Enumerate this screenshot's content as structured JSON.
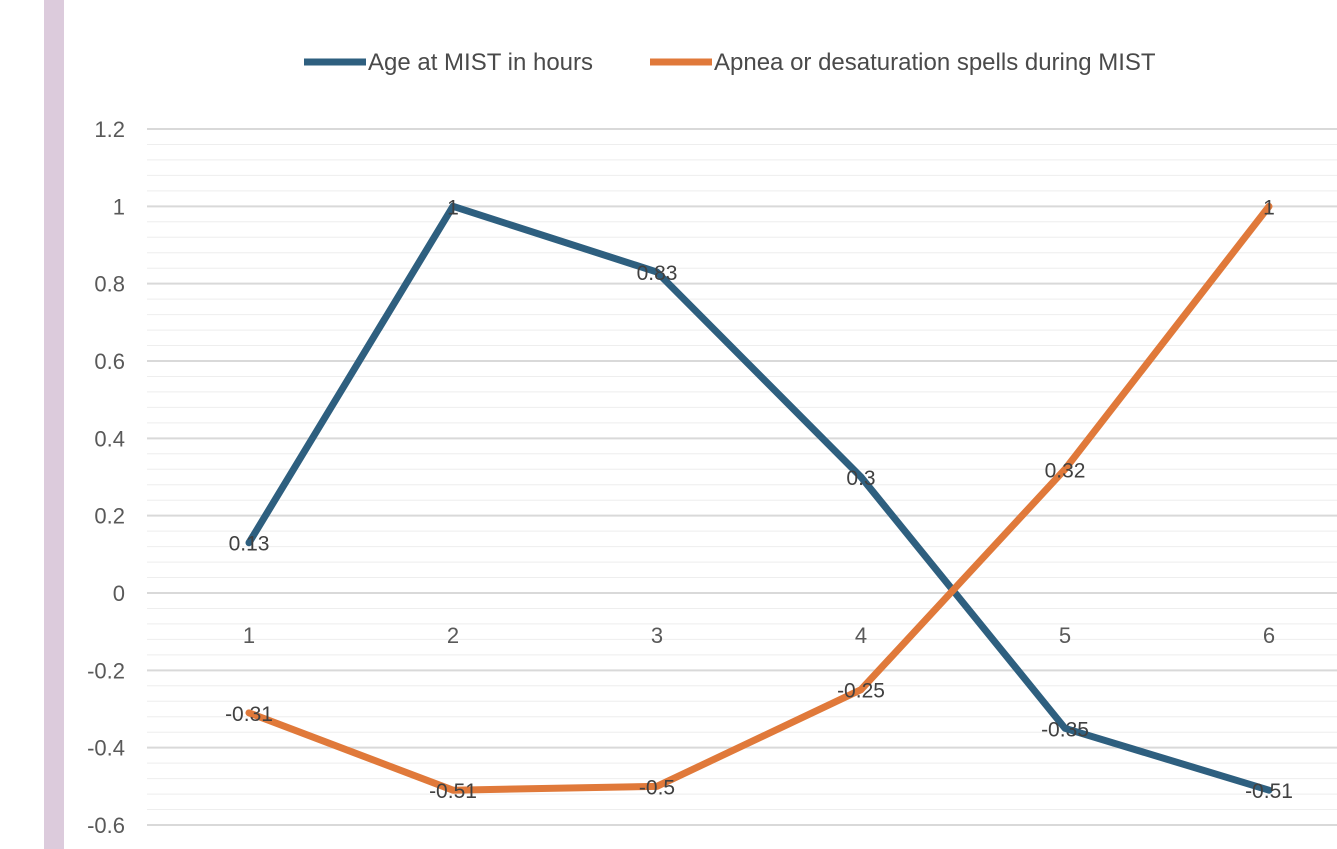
{
  "chart_data": {
    "type": "line",
    "categories": [
      "1",
      "2",
      "3",
      "4",
      "5",
      "6"
    ],
    "series": [
      {
        "name": "Age at MIST in hours",
        "values": [
          0.13,
          1,
          0.83,
          0.3,
          -0.35,
          -0.51
        ],
        "labels": [
          "0.13",
          "1",
          "0.83",
          "0.3",
          "-0.35",
          "-0.51"
        ],
        "color": "#2e5f7f"
      },
      {
        "name": "Apnea or desaturation spells during MIST",
        "values": [
          -0.31,
          -0.51,
          -0.5,
          -0.25,
          0.32,
          1
        ],
        "labels": [
          "-0.31",
          "-0.51",
          "-0.5",
          "-0.25",
          "0.32",
          "1"
        ],
        "color": "#e0793a"
      }
    ],
    "y_ticks": [
      "1.2",
      "1",
      "0.8",
      "0.6",
      "0.4",
      "0.2",
      "0",
      "-0.2",
      "-0.4",
      "-0.6"
    ],
    "ylim": [
      -0.6,
      1.2
    ],
    "grid": true,
    "legend_position": "top"
  }
}
